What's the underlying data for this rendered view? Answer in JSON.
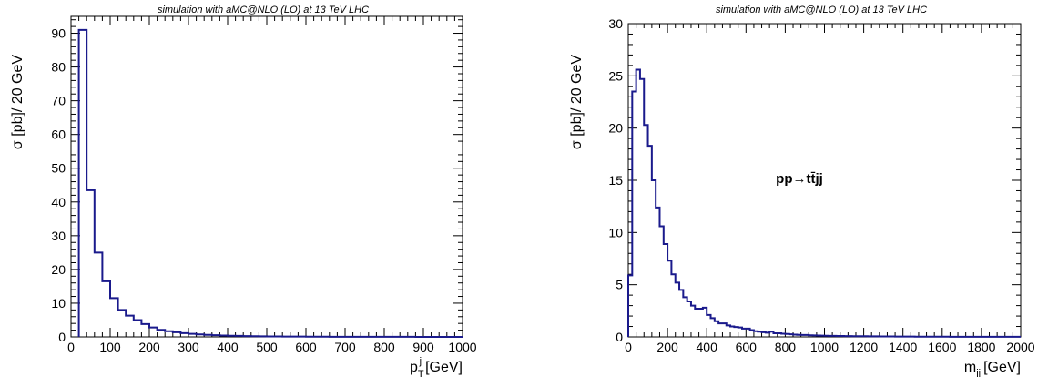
{
  "chart_data": [
    {
      "type": "histogram",
      "title": "simulation with aMC@NLO (LO) at 13 TeV LHC",
      "ylabel": "σ [pb]/ 20 GeV",
      "xlabel": "p_T^j [GeV]",
      "xlabel_parts": {
        "base": "p",
        "sup": "j",
        "sub": "T",
        "unit": "[GeV]"
      },
      "xlim": [
        0,
        1000
      ],
      "ylim": [
        0,
        95
      ],
      "xticks": [
        0,
        100,
        200,
        300,
        400,
        500,
        600,
        700,
        800,
        900,
        1000
      ],
      "yticks": [
        0,
        10,
        20,
        30,
        40,
        50,
        60,
        70,
        80,
        90
      ],
      "bin_width": 20,
      "bin_start": 20,
      "values": [
        91,
        43.5,
        25,
        16.5,
        11.5,
        8,
        6.3,
        5,
        3.8,
        2.8,
        2.1,
        1.7,
        1.4,
        1.1,
        0.9,
        0.75,
        0.6,
        0.5,
        0.42,
        0.35,
        0.3,
        0.25,
        0.21,
        0.18,
        0.15,
        0.13,
        0.11,
        0.1,
        0.09,
        0.08,
        0.07,
        0.06,
        0.05,
        0.05,
        0.04,
        0.04,
        0.03,
        0.03,
        0.03,
        0.02,
        0.02,
        0.02,
        0.02,
        0.01,
        0.01,
        0.01,
        0.01,
        0.01,
        0.01
      ],
      "grid": false,
      "line_color": "#1a1a8c"
    },
    {
      "type": "histogram",
      "title": "simulation with aMC@NLO (LO) at 13 TeV LHC",
      "ylabel": "σ [pb]/ 20 GeV",
      "xlabel": "m_jj [GeV]",
      "xlabel_parts": {
        "base": "m",
        "sub": "jj",
        "unit": "[GeV]"
      },
      "annotation": "pp→tt̄jj",
      "xlim": [
        0,
        2000
      ],
      "ylim": [
        0,
        30
      ],
      "xticks": [
        0,
        200,
        400,
        600,
        800,
        1000,
        1200,
        1400,
        1600,
        1800,
        2000
      ],
      "yticks": [
        0,
        5,
        10,
        15,
        20,
        25,
        30
      ],
      "bin_width": 20,
      "bin_start": 0,
      "values": [
        5.9,
        23.5,
        25.6,
        24.7,
        20.3,
        18.3,
        15.0,
        12.4,
        10.6,
        8.9,
        7.3,
        6.0,
        5.2,
        4.5,
        3.8,
        3.4,
        3.0,
        2.7,
        2.7,
        2.8,
        2.1,
        1.8,
        1.5,
        1.3,
        1.3,
        1.1,
        1.0,
        0.95,
        0.9,
        0.8,
        0.8,
        0.65,
        0.55,
        0.5,
        0.45,
        0.4,
        0.5,
        0.35,
        0.35,
        0.3,
        0.28,
        0.25,
        0.22,
        0.2,
        0.18,
        0.18,
        0.15,
        0.14,
        0.13,
        0.12,
        0.11,
        0.1,
        0.1,
        0.09,
        0.09,
        0.08,
        0.08,
        0.07,
        0.07,
        0.06,
        0.06,
        0.05,
        0.05,
        0.05,
        0.04,
        0.04,
        0.04,
        0.04,
        0.03,
        0.03,
        0.03,
        0.03,
        0.03,
        0.02,
        0.02,
        0.02,
        0.02,
        0.02,
        0.02,
        0.02,
        0.02,
        0.02,
        0.01,
        0.01,
        0.01,
        0.01,
        0.01,
        0.01,
        0.01,
        0.01,
        0.01,
        0.01,
        0.01,
        0.01,
        0.01,
        0.01,
        0.01,
        0.01,
        0.01,
        0.01
      ],
      "grid": false,
      "line_color": "#1a1a8c"
    }
  ]
}
